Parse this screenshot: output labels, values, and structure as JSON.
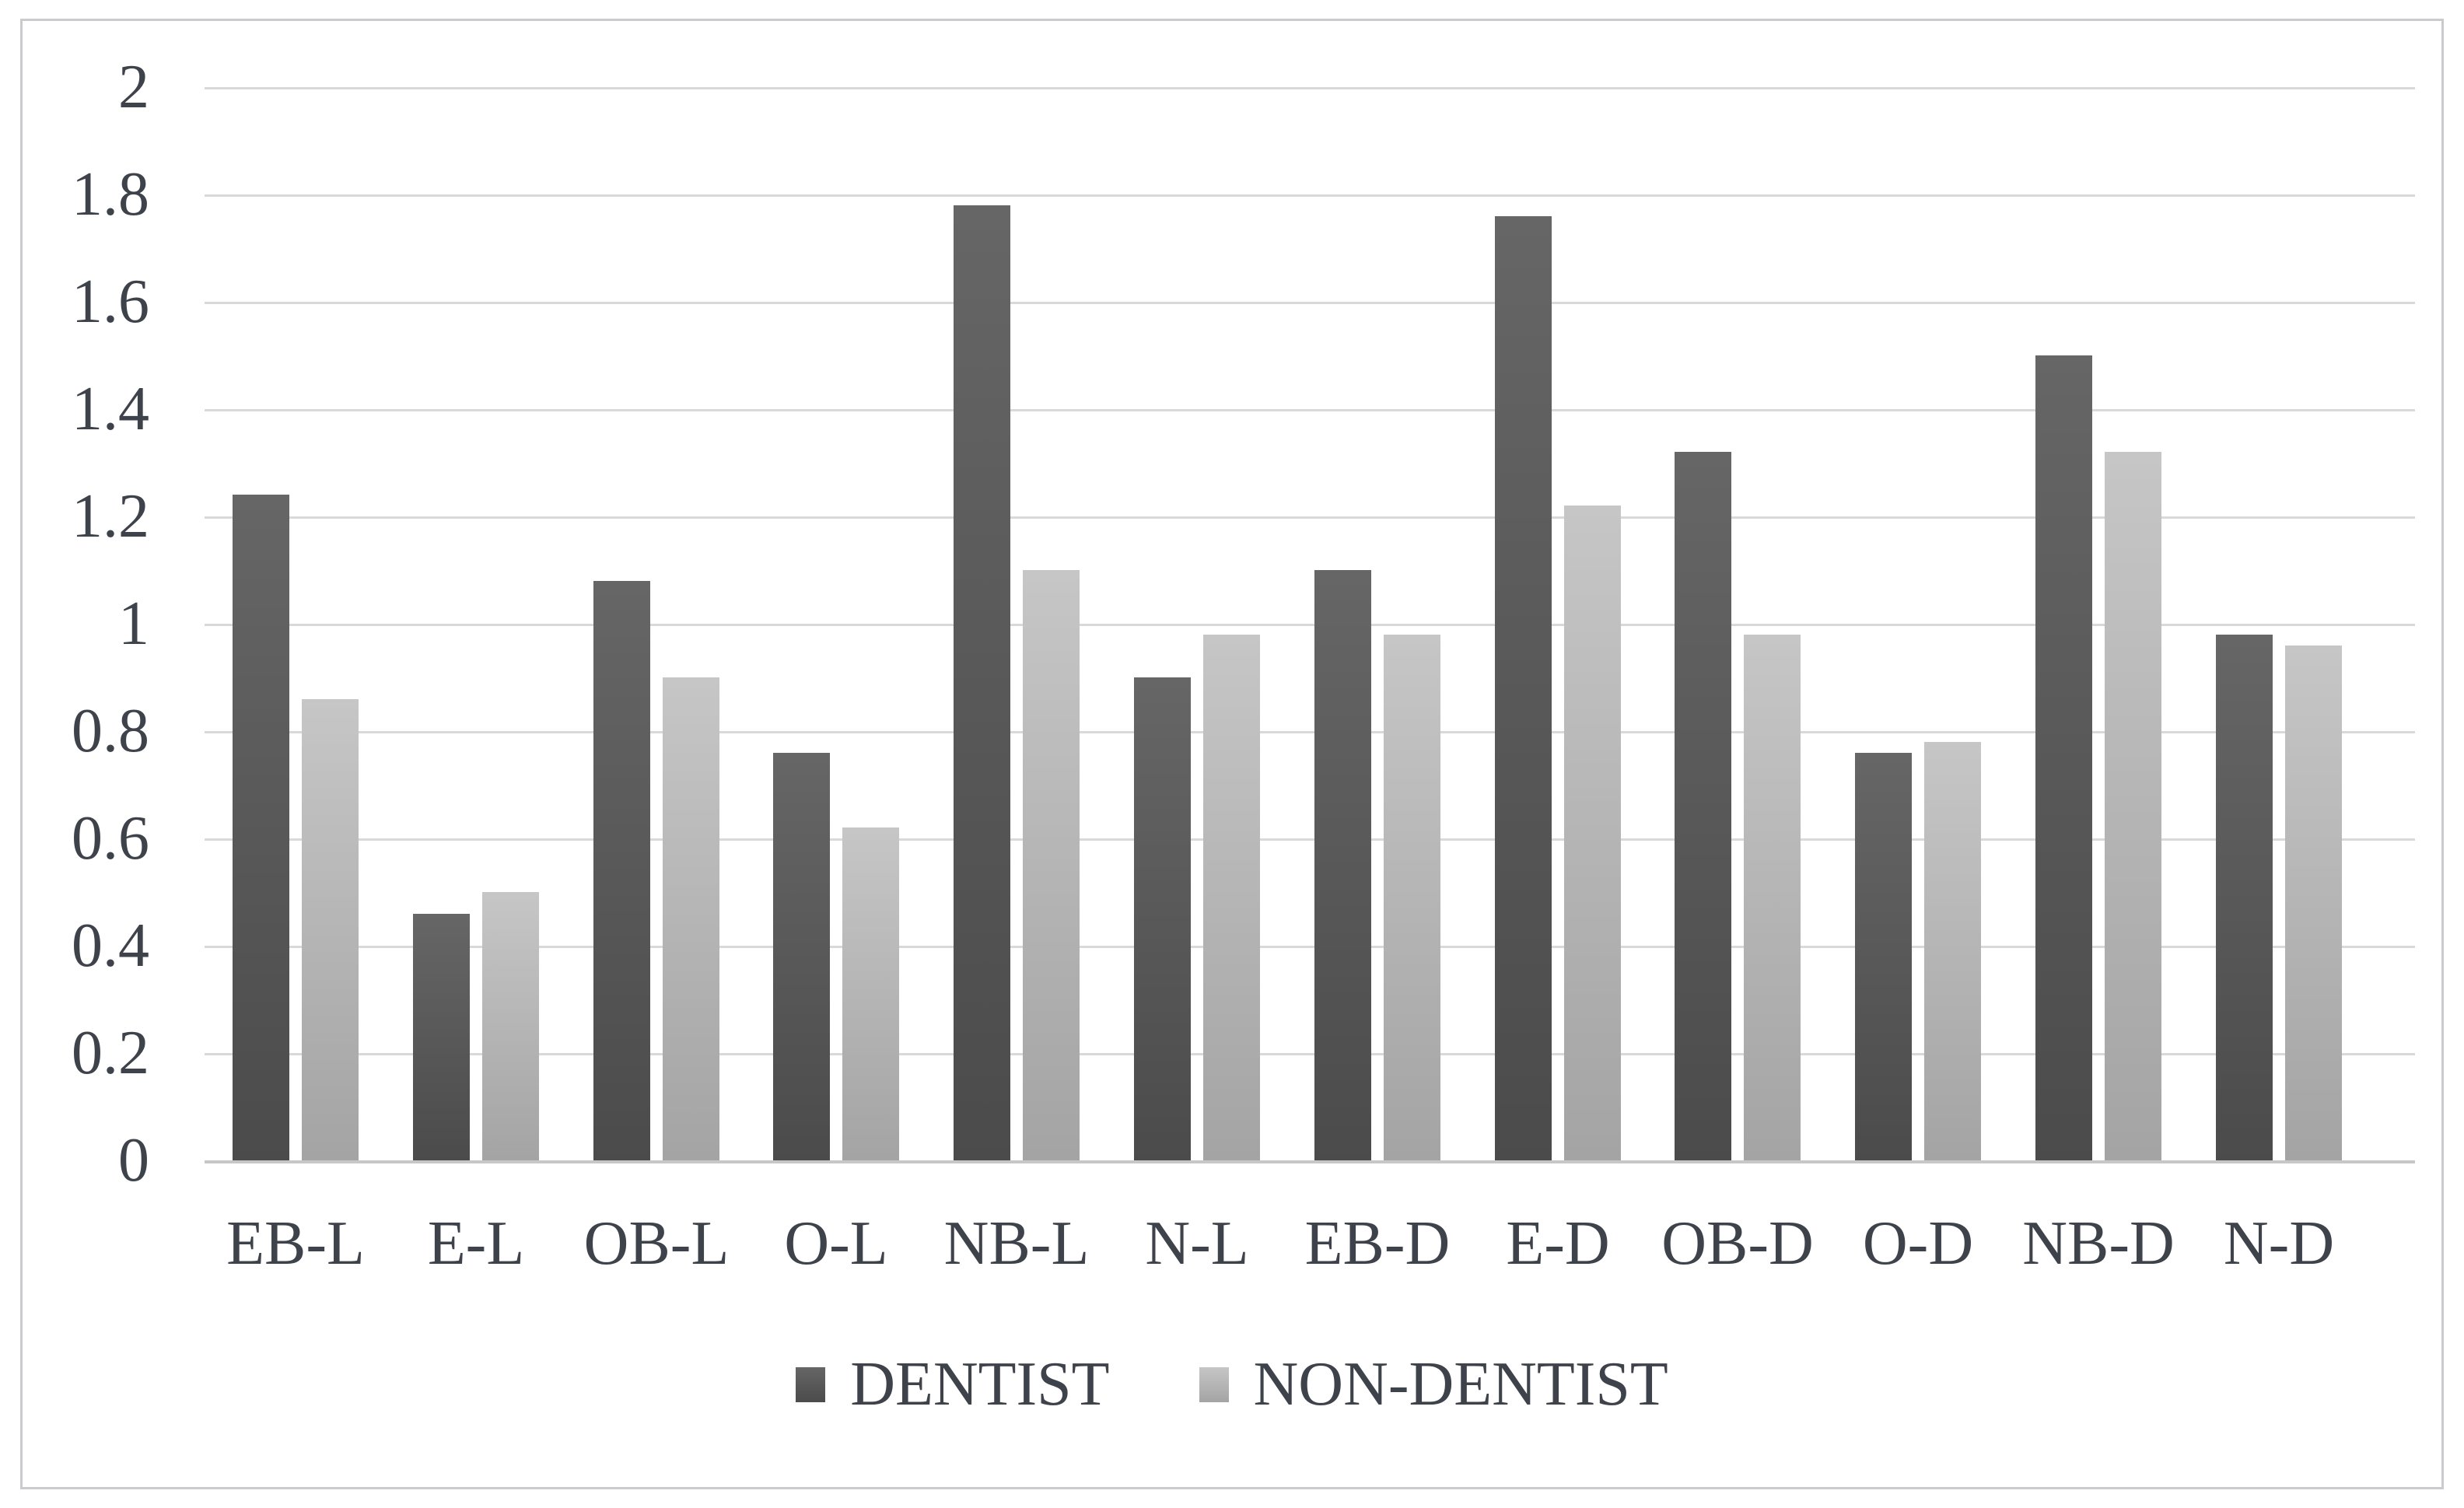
{
  "chart_data": {
    "type": "bar",
    "title": "",
    "categories": [
      "EB-L",
      "E-L",
      "OB-L",
      "O-L",
      "NB-L",
      "N-L",
      "EB-D",
      "E-D",
      "OB-D",
      "O-D",
      "NB-D",
      "N-D"
    ],
    "series": [
      {
        "name": "DENTIST",
        "values": [
          1.24,
          0.46,
          1.08,
          0.76,
          1.78,
          0.9,
          1.1,
          1.76,
          1.32,
          0.76,
          1.5,
          0.98
        ],
        "color_top": "#666666",
        "color_bottom": "#4b4b4b"
      },
      {
        "name": "NON-DENTIST",
        "values": [
          0.86,
          0.5,
          0.9,
          0.62,
          1.1,
          0.98,
          0.98,
          1.22,
          0.98,
          0.78,
          1.32,
          0.96
        ],
        "color_top": "#c6c6c6",
        "color_bottom": "#a4a4a4"
      }
    ],
    "xlabel": "",
    "ylabel": "",
    "ylim": [
      0,
      2
    ],
    "ytick_step": 0.2,
    "ytick_labels": [
      "0",
      "0.2",
      "0.4",
      "0.6",
      "0.8",
      "1",
      "1.2",
      "1.4",
      "1.6",
      "1.8",
      "2"
    ],
    "grid": "horizontal-only",
    "legend_position": "bottom"
  },
  "colors": {
    "background": "#ffffff",
    "frame_border": "#c9cbce",
    "gridline": "#d9d9d9",
    "zero_axis": "#c7c7c7",
    "text": "#3e434b"
  }
}
